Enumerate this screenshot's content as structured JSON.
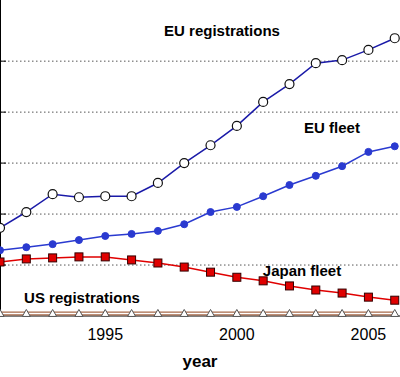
{
  "chart_data": {
    "type": "line",
    "x_label": "year",
    "x": [
      1991,
      1992,
      1993,
      1994,
      1995,
      1996,
      1997,
      1998,
      1999,
      2000,
      2001,
      2002,
      2003,
      2004,
      2005,
      2006
    ],
    "xlim": [
      1991,
      2006.2
    ],
    "xticks": [
      1995,
      2000,
      2005
    ],
    "ylim": [
      0,
      6.2
    ],
    "yticks": [
      1,
      2,
      3,
      4,
      5
    ],
    "grid": true,
    "tick_labels": "x",
    "series": [
      {
        "name": "EU registrations",
        "color": "#1a1aa8",
        "marker": "open-circle",
        "line_style": "solid",
        "values": [
          1.73,
          2.04,
          2.39,
          2.33,
          2.35,
          2.35,
          2.61,
          3.0,
          3.35,
          3.73,
          4.2,
          4.55,
          4.96,
          5.02,
          5.22,
          5.45
        ]
      },
      {
        "name": "EU fleet",
        "color": "#2a3ad0",
        "marker": "circle",
        "line_style": "solid",
        "values": [
          1.29,
          1.35,
          1.41,
          1.49,
          1.57,
          1.61,
          1.67,
          1.8,
          2.04,
          2.14,
          2.35,
          2.57,
          2.75,
          2.94,
          3.22,
          3.33
        ]
      },
      {
        "name": "Japan fleet",
        "color": "#e00000",
        "marker": "square",
        "line_style": "solid",
        "values": [
          1.06,
          1.12,
          1.14,
          1.16,
          1.16,
          1.1,
          1.04,
          0.96,
          0.86,
          0.76,
          0.69,
          0.59,
          0.51,
          0.45,
          0.37,
          0.31
        ]
      },
      {
        "name": "US registrations",
        "color": "#a86a4a",
        "marker": "triangle",
        "line_style": "solid",
        "values": [
          0.05,
          0.05,
          0.05,
          0.05,
          0.05,
          0.05,
          0.05,
          0.05,
          0.05,
          0.05,
          0.05,
          0.05,
          0.05,
          0.05,
          0.05,
          0.05
        ]
      }
    ]
  }
}
